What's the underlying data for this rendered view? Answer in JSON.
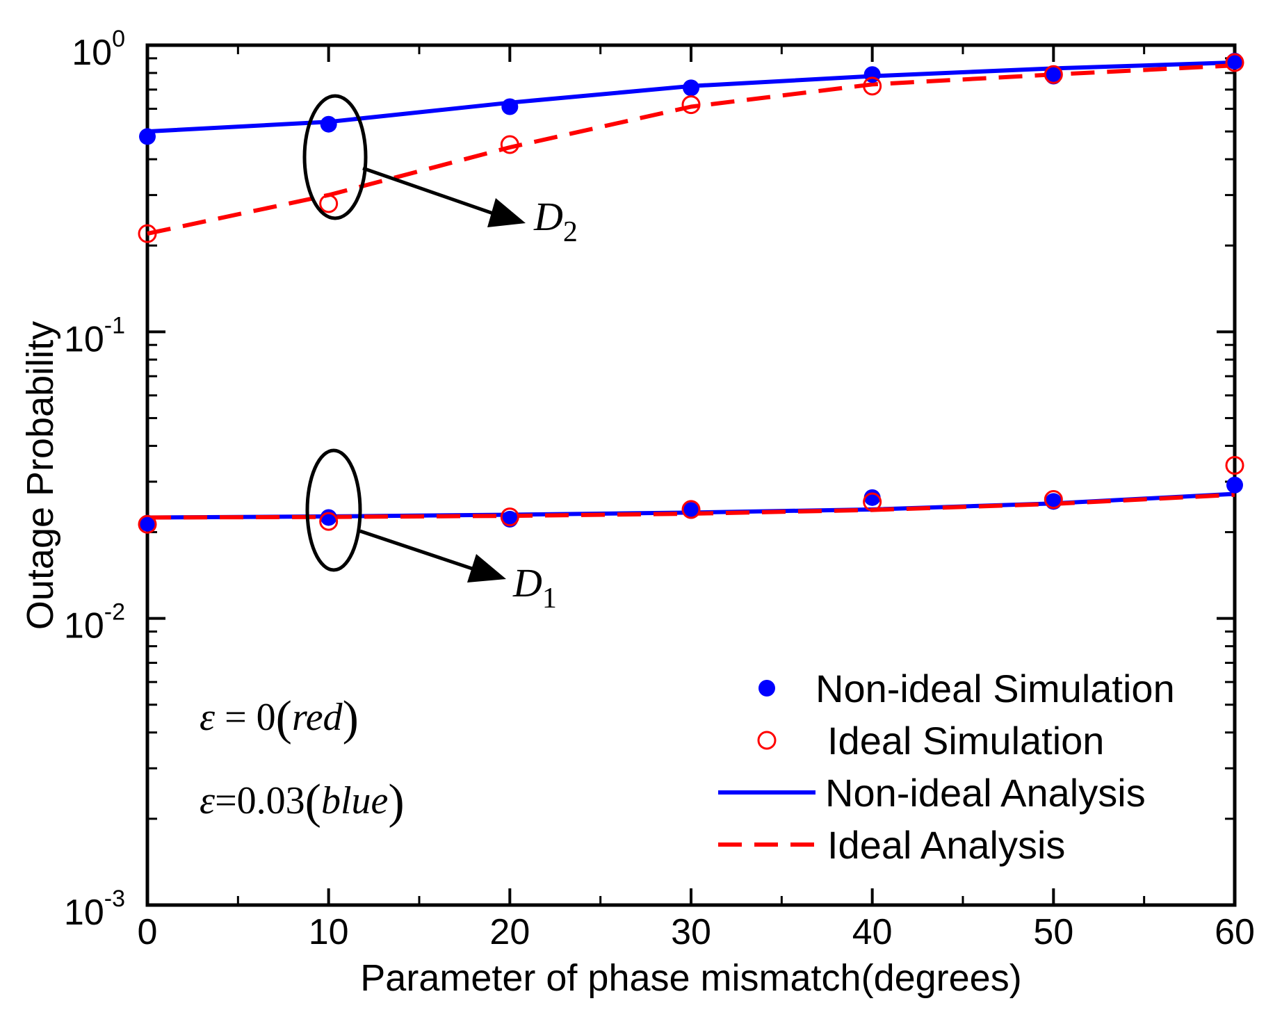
{
  "chart_data": {
    "type": "line",
    "xlabel": "Parameter of phase mismatch(degrees)",
    "ylabel": "Outage Probability",
    "xlim": [
      0,
      60
    ],
    "ylim": [
      0.001,
      1
    ],
    "yscale": "log",
    "x_ticks": [
      0,
      10,
      20,
      30,
      40,
      50,
      60
    ],
    "x_tick_labels": [
      "0",
      "10",
      "20",
      "30",
      "40",
      "50",
      "60"
    ],
    "y_ticks": [
      {
        "value": 1,
        "base": "10",
        "exp": "0"
      },
      {
        "value": 0.1,
        "base": "10",
        "exp": "-1"
      },
      {
        "value": 0.01,
        "base": "10",
        "exp": "-2"
      },
      {
        "value": 0.001,
        "base": "10",
        "exp": "-3"
      }
    ],
    "grid": false,
    "legend_position": "bottom-right",
    "colors": {
      "non_ideal": "#0000ff",
      "ideal": "#ff0000"
    },
    "series": [
      {
        "name": "Non-ideal Simulation",
        "style": "filled-circle",
        "color": "#0000ff",
        "group": "D2",
        "x": [
          0,
          10,
          20,
          30,
          40,
          50,
          60
        ],
        "y": [
          0.48,
          0.53,
          0.61,
          0.71,
          0.79,
          0.78,
          0.88
        ]
      },
      {
        "name": "Ideal Simulation",
        "style": "open-circle",
        "color": "#ff0000",
        "group": "D2",
        "x": [
          0,
          10,
          20,
          30,
          40,
          50,
          60
        ],
        "y": [
          0.22,
          0.28,
          0.45,
          0.62,
          0.72,
          0.79,
          0.87
        ]
      },
      {
        "name": "Non-ideal Analysis",
        "style": "solid-line",
        "color": "#0000ff",
        "group": "D2",
        "x": [
          0,
          10,
          20,
          30,
          40,
          50,
          60
        ],
        "y": [
          0.5,
          0.54,
          0.63,
          0.72,
          0.78,
          0.83,
          0.87
        ]
      },
      {
        "name": "Ideal Analysis",
        "style": "dashed-line",
        "color": "#ff0000",
        "group": "D2",
        "x": [
          0,
          10,
          20,
          30,
          40,
          50,
          60
        ],
        "y": [
          0.22,
          0.3,
          0.44,
          0.61,
          0.73,
          0.79,
          0.85
        ]
      },
      {
        "name": "Non-ideal Simulation",
        "style": "filled-circle",
        "color": "#0000ff",
        "group": "D1",
        "x": [
          0,
          10,
          20,
          30,
          40,
          50,
          60
        ],
        "y": [
          0.0215,
          0.0225,
          0.0222,
          0.0238,
          0.0264,
          0.0256,
          0.0292
        ]
      },
      {
        "name": "Ideal Simulation",
        "style": "open-circle",
        "color": "#ff0000",
        "group": "D1",
        "x": [
          0,
          10,
          20,
          30,
          40,
          50,
          60
        ],
        "y": [
          0.0213,
          0.0218,
          0.0226,
          0.024,
          0.0255,
          0.026,
          0.0342
        ]
      },
      {
        "name": "Non-ideal Analysis",
        "style": "solid-line",
        "color": "#0000ff",
        "group": "D1",
        "x": [
          0,
          10,
          20,
          30,
          40,
          50,
          60
        ],
        "y": [
          0.0225,
          0.0227,
          0.023,
          0.0234,
          0.024,
          0.0252,
          0.0272
        ]
      },
      {
        "name": "Ideal Analysis",
        "style": "dashed-line",
        "color": "#ff0000",
        "group": "D1",
        "x": [
          0,
          10,
          20,
          30,
          40,
          50,
          60
        ],
        "y": [
          0.0225,
          0.0226,
          0.0228,
          0.0232,
          0.0239,
          0.0251,
          0.027
        ]
      }
    ],
    "annotations": {
      "d2": {
        "base": "D",
        "sub": "2",
        "x": 10,
        "y": 0.38
      },
      "d1": {
        "base": "D",
        "sub": "1",
        "x": 10,
        "y": 0.0215
      },
      "eps_red": {
        "symbol": "ε",
        "equals": " = 0",
        "paren_open": "(",
        "word": "red",
        "paren_close": ")"
      },
      "eps_blue": {
        "symbol": "ε",
        "equals": "=0.03",
        "paren_open": "(",
        "word": "blue",
        "paren_close": ")"
      }
    }
  }
}
